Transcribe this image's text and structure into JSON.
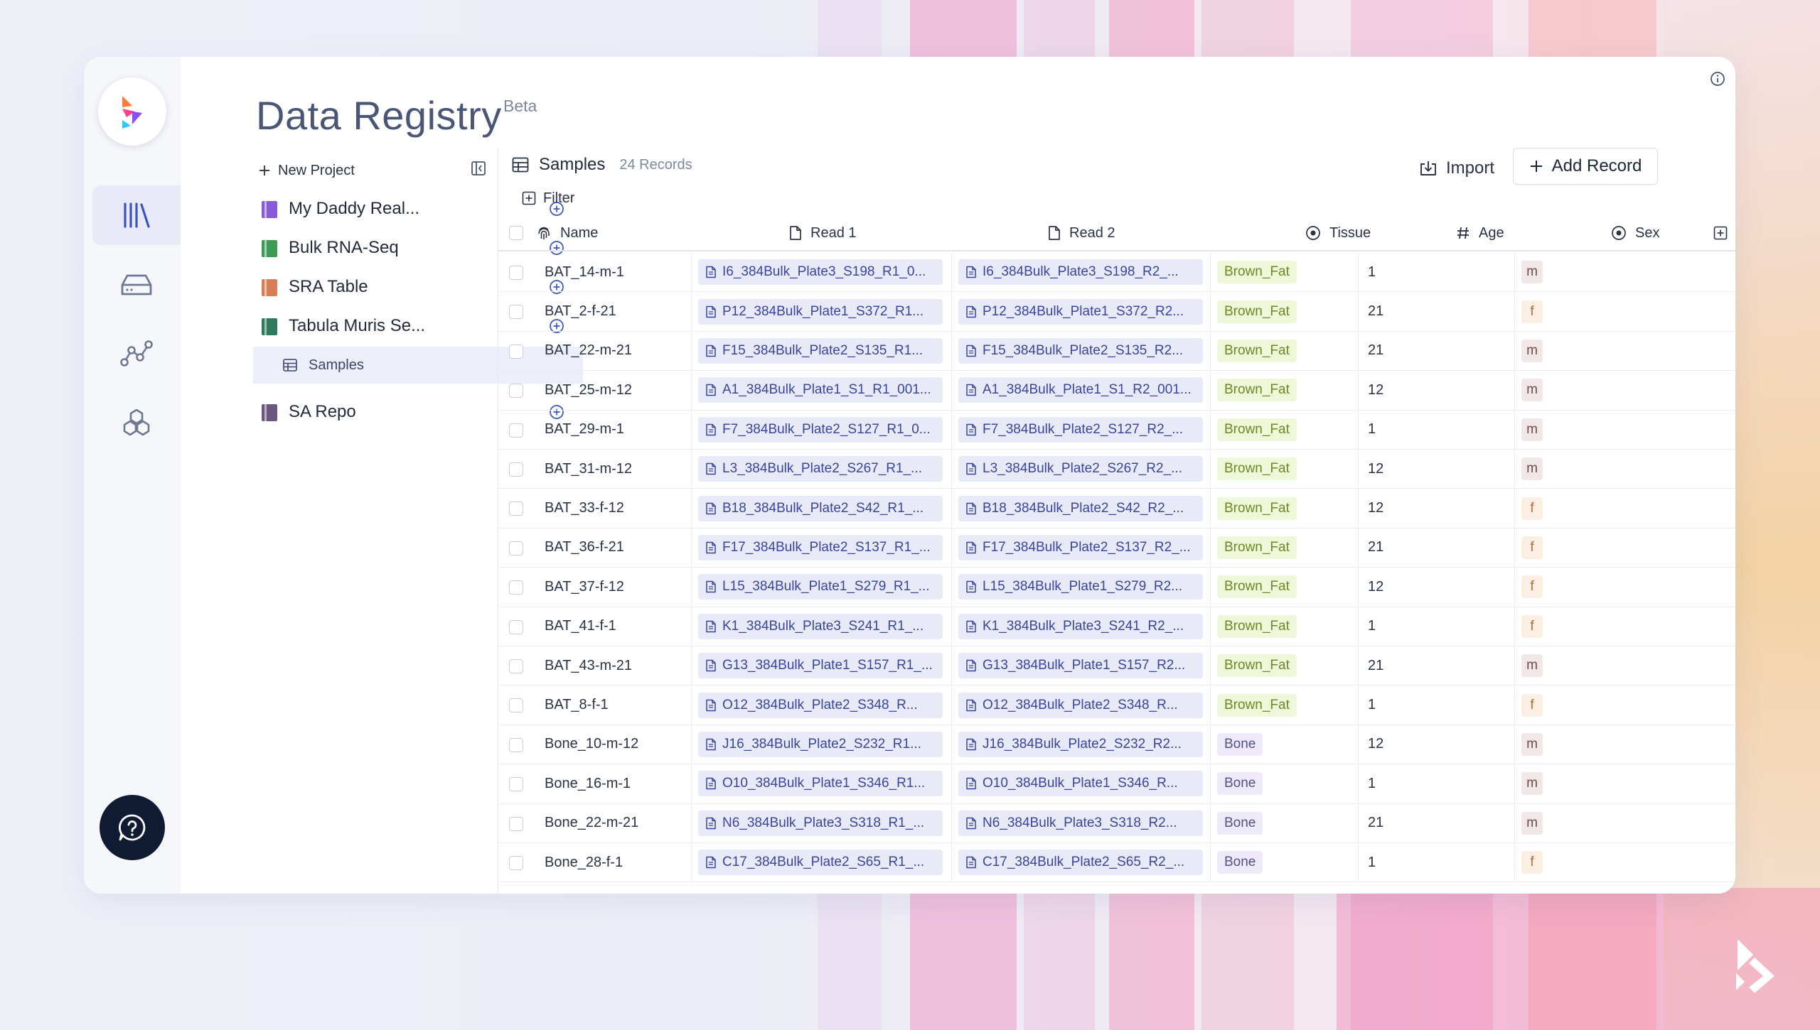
{
  "app": {
    "title": "Data Registry",
    "badge": "Beta"
  },
  "rail": {
    "items": [
      {
        "icon": "library-icon",
        "active": true
      },
      {
        "icon": "storage-icon",
        "active": false
      },
      {
        "icon": "graph-icon",
        "active": false
      },
      {
        "icon": "hexagons-icon",
        "active": false
      }
    ],
    "help_icon": "help-chat-icon"
  },
  "sidebar": {
    "new_project_label": "New Project",
    "projects": [
      {
        "label": "My Daddy Real...",
        "color": "#8a5bd6"
      },
      {
        "label": "Bulk RNA-Seq",
        "color": "#3e9b55"
      },
      {
        "label": "SRA Table",
        "color": "#d97d55"
      },
      {
        "label": "Tabula Muris Se...",
        "color": "#2f7a5c"
      }
    ],
    "child": {
      "label": "Samples"
    },
    "projects_after": [
      {
        "label": "SA Repo",
        "color": "#6c587f"
      }
    ]
  },
  "table": {
    "name": "Samples",
    "record_count": "24 Records",
    "import_label": "Import",
    "add_record_label": "Add Record",
    "filter_label": "Filter",
    "columns": [
      {
        "label": "Name",
        "icon": "fingerprint-icon"
      },
      {
        "label": "Read 1",
        "icon": "file-icon"
      },
      {
        "label": "Read 2",
        "icon": "file-icon"
      },
      {
        "label": "Tissue",
        "icon": "select-icon"
      },
      {
        "label": "Age",
        "icon": "hash-icon"
      },
      {
        "label": "Sex",
        "icon": "select-icon"
      }
    ],
    "rows": [
      {
        "name": "BAT_14-m-1",
        "read1": "I6_384Bulk_Plate3_S198_R1_0...",
        "read2": "I6_384Bulk_Plate3_S198_R2_...",
        "tissue": "Brown_Fat",
        "age": "1",
        "sex": "m"
      },
      {
        "name": "BAT_2-f-21",
        "read1": "P12_384Bulk_Plate1_S372_R1...",
        "read2": "P12_384Bulk_Plate1_S372_R2...",
        "tissue": "Brown_Fat",
        "age": "21",
        "sex": "f"
      },
      {
        "name": "BAT_22-m-21",
        "read1": "F15_384Bulk_Plate2_S135_R1...",
        "read2": "F15_384Bulk_Plate2_S135_R2...",
        "tissue": "Brown_Fat",
        "age": "21",
        "sex": "m"
      },
      {
        "name": "BAT_25-m-12",
        "read1": "A1_384Bulk_Plate1_S1_R1_001...",
        "read2": "A1_384Bulk_Plate1_S1_R2_001...",
        "tissue": "Brown_Fat",
        "age": "12",
        "sex": "m"
      },
      {
        "name": "BAT_29-m-1",
        "read1": "F7_384Bulk_Plate2_S127_R1_0...",
        "read2": "F7_384Bulk_Plate2_S127_R2_...",
        "tissue": "Brown_Fat",
        "age": "1",
        "sex": "m"
      },
      {
        "name": "BAT_31-m-12",
        "read1": "L3_384Bulk_Plate2_S267_R1_...",
        "read2": "L3_384Bulk_Plate2_S267_R2_...",
        "tissue": "Brown_Fat",
        "age": "12",
        "sex": "m"
      },
      {
        "name": "BAT_33-f-12",
        "read1": "B18_384Bulk_Plate2_S42_R1_...",
        "read2": "B18_384Bulk_Plate2_S42_R2_...",
        "tissue": "Brown_Fat",
        "age": "12",
        "sex": "f"
      },
      {
        "name": "BAT_36-f-21",
        "read1": "F17_384Bulk_Plate2_S137_R1_...",
        "read2": "F17_384Bulk_Plate2_S137_R2_...",
        "tissue": "Brown_Fat",
        "age": "21",
        "sex": "f"
      },
      {
        "name": "BAT_37-f-12",
        "read1": "L15_384Bulk_Plate1_S279_R1_...",
        "read2": "L15_384Bulk_Plate1_S279_R2...",
        "tissue": "Brown_Fat",
        "age": "12",
        "sex": "f"
      },
      {
        "name": "BAT_41-f-1",
        "read1": "K1_384Bulk_Plate3_S241_R1_...",
        "read2": "K1_384Bulk_Plate3_S241_R2_...",
        "tissue": "Brown_Fat",
        "age": "1",
        "sex": "f"
      },
      {
        "name": "BAT_43-m-21",
        "read1": "G13_384Bulk_Plate1_S157_R1_...",
        "read2": "G13_384Bulk_Plate1_S157_R2...",
        "tissue": "Brown_Fat",
        "age": "21",
        "sex": "m"
      },
      {
        "name": "BAT_8-f-1",
        "read1": "O12_384Bulk_Plate2_S348_R...",
        "read2": "O12_384Bulk_Plate2_S348_R...",
        "tissue": "Brown_Fat",
        "age": "1",
        "sex": "f"
      },
      {
        "name": "Bone_10-m-12",
        "read1": "J16_384Bulk_Plate2_S232_R1...",
        "read2": "J16_384Bulk_Plate2_S232_R2...",
        "tissue": "Bone",
        "age": "12",
        "sex": "m"
      },
      {
        "name": "Bone_16-m-1",
        "read1": "O10_384Bulk_Plate1_S346_R1...",
        "read2": "O10_384Bulk_Plate1_S346_R...",
        "tissue": "Bone",
        "age": "1",
        "sex": "m"
      },
      {
        "name": "Bone_22-m-21",
        "read1": "N6_384Bulk_Plate3_S318_R1_...",
        "read2": "N6_384Bulk_Plate3_S318_R2...",
        "tissue": "Bone",
        "age": "21",
        "sex": "m"
      },
      {
        "name": "Bone_28-f-1",
        "read1": "C17_384Bulk_Plate2_S65_R1_...",
        "read2": "C17_384Bulk_Plate2_S65_R2_...",
        "tissue": "Bone",
        "age": "1",
        "sex": "f"
      }
    ]
  }
}
